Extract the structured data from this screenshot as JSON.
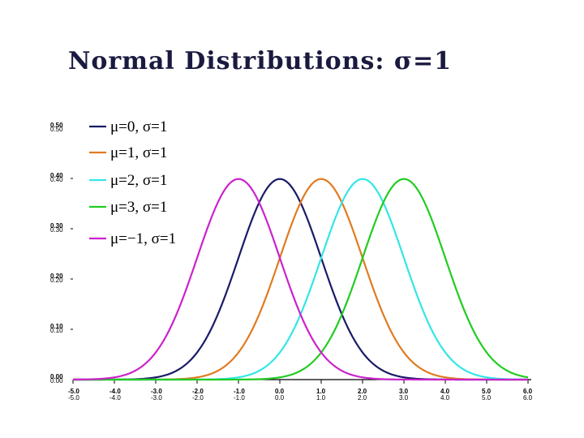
{
  "title": "Normal Distributions: σ=1",
  "chart_data": {
    "type": "line",
    "title": "Normal Distributions: σ=1",
    "xlabel": "",
    "ylabel": "",
    "xlim": [
      -5.0,
      6.0
    ],
    "ylim": [
      0.0,
      0.5
    ],
    "x_ticks": [
      "-5.0",
      "-4.0",
      "-3.0",
      "-2.0",
      "-1.0",
      "0.0",
      "1.0",
      "2.0",
      "3.0",
      "4.0",
      "5.0",
      "6.0"
    ],
    "y_ticks": [
      "0.00",
      "0.10",
      "0.20",
      "0.30",
      "0.40",
      "0.50"
    ],
    "grid": false,
    "legend_position": "upper-left",
    "series": [
      {
        "name": "μ=0, σ=1",
        "mu": 0,
        "sigma": 1,
        "color": "#1a1a66"
      },
      {
        "name": "μ=1, σ=1",
        "mu": 1,
        "sigma": 1,
        "color": "#e07b20"
      },
      {
        "name": "μ=2, σ=1",
        "mu": 2,
        "sigma": 1,
        "color": "#33e6e6"
      },
      {
        "name": "μ=3, σ=1",
        "mu": 3,
        "sigma": 1,
        "color": "#22cc22"
      },
      {
        "name": "μ=−1, σ=1",
        "mu": -1,
        "sigma": 1,
        "color": "#cc22cc"
      }
    ]
  }
}
